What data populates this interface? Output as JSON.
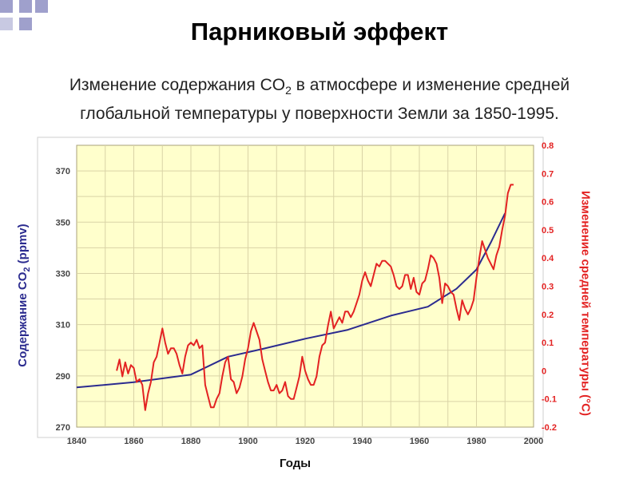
{
  "slide": {
    "title": "Парниковый эффект",
    "subtitle_line1_pre": "Изменение содержания CO",
    "subtitle_line1_sub": "2",
    "subtitle_line1_post": " в атмосфере и изменение средней",
    "subtitle_line2": "глобальной температуры у поверхности Земли за 1850-1995."
  },
  "colors": {
    "plot_background": "#ffffcc",
    "co2_line": "#2b2b8f",
    "temperature_line": "#e32222",
    "gridline": "#d9d3a6",
    "decor_square": "#9fa0cc"
  },
  "chart_data": {
    "type": "line",
    "xlabel": "Годы",
    "ylabel_left_pre": "Содержание CO",
    "ylabel_left_sub": "2",
    "ylabel_left_post": " (ppmv)",
    "ylabel_right": "Изменение средней температуры (°C)",
    "xlim": [
      1840,
      2000
    ],
    "xticks": [
      "1840",
      "1860",
      "1880",
      "1900",
      "1920",
      "1940",
      "1960",
      "1980",
      "2000"
    ],
    "ylim_left": [
      270,
      380
    ],
    "yticks_left": [
      "270",
      "290",
      "310",
      "330",
      "350",
      "370"
    ],
    "ylim_right": [
      -0.2,
      0.8
    ],
    "yticks_right": [
      "-0.2",
      "-0.1",
      "0",
      "0.1",
      "0.2",
      "0.3",
      "0.4",
      "0.5",
      "0.6",
      "0.7",
      "0.8"
    ],
    "grid": true,
    "series": [
      {
        "axis": "left",
        "x": [
          1840,
          1860,
          1880,
          1893,
          1905,
          1920,
          1935,
          1950,
          1963,
          1973,
          1980,
          1985,
          1990
        ],
        "y": [
          285.5,
          287.5,
          290.5,
          297.5,
          300.5,
          304.5,
          308,
          313.5,
          317,
          324,
          331.5,
          342,
          353.5
        ]
      },
      {
        "axis": "right",
        "x": [
          1854,
          1855,
          1856,
          1857,
          1858,
          1859,
          1860,
          1861,
          1862,
          1863,
          1864,
          1865,
          1866,
          1867,
          1868,
          1869,
          1870,
          1871,
          1872,
          1873,
          1874,
          1875,
          1876,
          1877,
          1878,
          1879,
          1880,
          1881,
          1882,
          1883,
          1884,
          1885,
          1886,
          1887,
          1888,
          1889,
          1890,
          1891,
          1892,
          1893,
          1894,
          1895,
          1896,
          1897,
          1898,
          1899,
          1900,
          1901,
          1902,
          1903,
          1904,
          1905,
          1906,
          1907,
          1908,
          1909,
          1910,
          1911,
          1912,
          1913,
          1914,
          1915,
          1916,
          1917,
          1918,
          1919,
          1920,
          1921,
          1922,
          1923,
          1924,
          1925,
          1926,
          1927,
          1928,
          1929,
          1930,
          1931,
          1932,
          1933,
          1934,
          1935,
          1936,
          1937,
          1938,
          1939,
          1940,
          1941,
          1942,
          1943,
          1944,
          1945,
          1946,
          1947,
          1948,
          1949,
          1950,
          1951,
          1952,
          1953,
          1954,
          1955,
          1956,
          1957,
          1958,
          1959,
          1960,
          1961,
          1962,
          1963,
          1964,
          1965,
          1966,
          1967,
          1968,
          1969,
          1970,
          1971,
          1972,
          1973,
          1974,
          1975,
          1976,
          1977,
          1978,
          1979,
          1980,
          1981,
          1982,
          1983,
          1984,
          1985,
          1986,
          1987,
          1988,
          1989,
          1990,
          1991,
          1992,
          1993
        ],
        "y": [
          0,
          0.04,
          -0.02,
          0.03,
          -0.01,
          0.02,
          0.01,
          -0.04,
          -0.03,
          -0.05,
          -0.14,
          -0.08,
          -0.04,
          0.03,
          0.05,
          0.1,
          0.15,
          0.1,
          0.06,
          0.08,
          0.08,
          0.06,
          0.02,
          -0.01,
          0.05,
          0.09,
          0.1,
          0.09,
          0.11,
          0.08,
          0.09,
          -0.05,
          -0.09,
          -0.13,
          -0.13,
          -0.1,
          -0.08,
          -0.02,
          0.03,
          0.05,
          -0.03,
          -0.04,
          -0.08,
          -0.06,
          -0.02,
          0.04,
          0.08,
          0.14,
          0.17,
          0.14,
          0.11,
          0.04,
          0,
          -0.04,
          -0.07,
          -0.07,
          -0.05,
          -0.08,
          -0.07,
          -0.04,
          -0.09,
          -0.1,
          -0.1,
          -0.06,
          -0.02,
          0.05,
          0,
          -0.03,
          -0.05,
          -0.05,
          -0.02,
          0.05,
          0.09,
          0.1,
          0.16,
          0.21,
          0.15,
          0.17,
          0.19,
          0.17,
          0.21,
          0.21,
          0.19,
          0.21,
          0.24,
          0.27,
          0.32,
          0.35,
          0.32,
          0.3,
          0.34,
          0.38,
          0.37,
          0.39,
          0.39,
          0.38,
          0.37,
          0.34,
          0.3,
          0.29,
          0.3,
          0.34,
          0.34,
          0.29,
          0.33,
          0.28,
          0.27,
          0.31,
          0.32,
          0.36,
          0.41,
          0.4,
          0.38,
          0.33,
          0.24,
          0.31,
          0.3,
          0.28,
          0.27,
          0.22,
          0.18,
          0.25,
          0.22,
          0.2,
          0.22,
          0.25,
          0.33,
          0.4,
          0.46,
          0.43,
          0.4,
          0.38,
          0.36,
          0.41,
          0.44,
          0.5,
          0.55,
          0.63,
          0.66,
          0.66
        ]
      }
    ]
  }
}
